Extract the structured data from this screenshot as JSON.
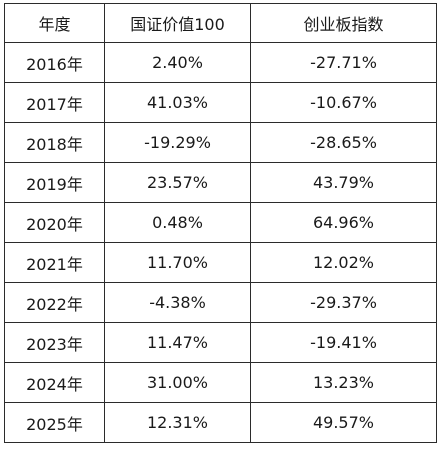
{
  "table": {
    "headers": [
      "年度",
      "国证价值100",
      "创业板指数"
    ],
    "rows": [
      [
        "2016年",
        "2.40%",
        "-27.71%"
      ],
      [
        "2017年",
        "41.03%",
        "-10.67%"
      ],
      [
        "2018年",
        "-19.29%",
        "-28.65%"
      ],
      [
        "2019年",
        "23.57%",
        "43.79%"
      ],
      [
        "2020年",
        "0.48%",
        "64.96%"
      ],
      [
        "2021年",
        "11.70%",
        "12.02%"
      ],
      [
        "2022年",
        "-4.38%",
        "-29.37%"
      ],
      [
        "2023年",
        "11.47%",
        "-19.41%"
      ],
      [
        "2024年",
        "31.00%",
        "13.23%"
      ],
      [
        "2025年",
        "12.31%",
        "49.57%"
      ]
    ]
  }
}
